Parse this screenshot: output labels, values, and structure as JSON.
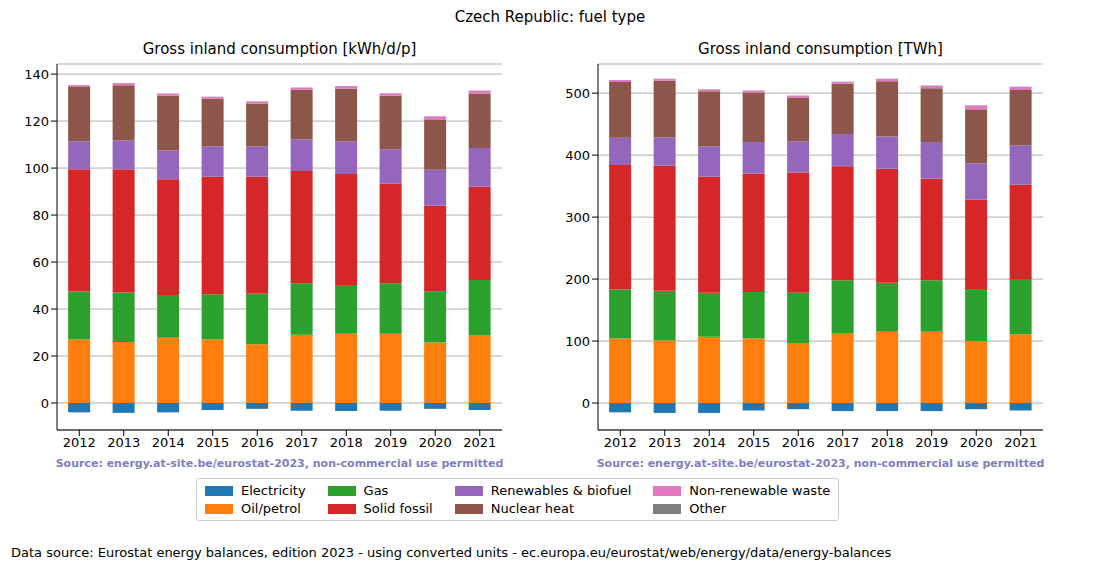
{
  "title": "Czech Republic: fuel type",
  "footer": "Data source: Eurostat energy balances, edition 2023 - using converted units - ec.europa.eu/eurostat/web/energy/data/energy-balances",
  "chart_data": [
    {
      "type": "bar",
      "title": "Gross inland consumption [kWh/d/p]",
      "annotation": "Source: energy.at-site.be/eurostat-2023, non-commercial use permitted",
      "categories": [
        "2012",
        "2013",
        "2014",
        "2015",
        "2016",
        "2017",
        "2018",
        "2019",
        "2020",
        "2021"
      ],
      "stacked": true,
      "grid": true,
      "legend": "bottom",
      "ylim": [
        -11.5,
        144.3
      ],
      "yticks": [
        0,
        20,
        40,
        60,
        80,
        100,
        120,
        140
      ],
      "series": [
        {
          "name": "Electricity",
          "color": "#1f77b4",
          "values": [
            -4,
            -4.2,
            -4,
            -3,
            -2.5,
            -3.3,
            -3.4,
            -3.3,
            -2.5,
            -3
          ]
        },
        {
          "name": "Oil/petrol",
          "color": "#ff7f0e",
          "values": [
            27,
            26,
            27.8,
            27,
            25,
            29,
            29.5,
            29.5,
            25.7,
            28.7
          ]
        },
        {
          "name": "Gas",
          "color": "#2ca02c",
          "values": [
            20.5,
            21,
            18.2,
            19.3,
            21.5,
            22,
            20.7,
            21.5,
            21.6,
            23.6
          ]
        },
        {
          "name": "Solid fossil",
          "color": "#d62728",
          "values": [
            52,
            52.5,
            49.2,
            50,
            49.8,
            47.8,
            47.3,
            42.3,
            36.7,
            39.7
          ]
        },
        {
          "name": "Renewables & biofuel",
          "color": "#9467bd",
          "values": [
            11.8,
            12.2,
            12.3,
            13,
            13,
            13.5,
            13.8,
            14.7,
            15.3,
            16.5
          ]
        },
        {
          "name": "Nuclear heat",
          "color": "#8c564b",
          "values": [
            23.2,
            23.6,
            23.3,
            20.2,
            18.2,
            21,
            22.5,
            22.8,
            21.2,
            23.2
          ]
        },
        {
          "name": "Non-renewable waste",
          "color": "#e377c2",
          "values": [
            0.8,
            0.8,
            0.8,
            0.8,
            0.8,
            0.9,
            1,
            1,
            1.5,
            1.2
          ]
        },
        {
          "name": "Other",
          "color": "#7f7f7f",
          "values": [
            0.1,
            0.1,
            0.1,
            0.1,
            0.1,
            0.1,
            0.1,
            0.1,
            0.1,
            0.1
          ]
        }
      ]
    },
    {
      "type": "bar",
      "title": "Gross inland consumption [TWh]",
      "annotation": "Source: energy.at-site.be/eurostat-2023, non-commercial use permitted",
      "categories": [
        "2012",
        "2013",
        "2014",
        "2015",
        "2016",
        "2017",
        "2018",
        "2019",
        "2020",
        "2021"
      ],
      "stacked": true,
      "grid": true,
      "legend": "bottom",
      "ylim": [
        -43.5,
        547
      ],
      "yticks": [
        0,
        100,
        200,
        300,
        400,
        500
      ],
      "series": [
        {
          "name": "Electricity",
          "color": "#1f77b4",
          "values": [
            -15,
            -16,
            -16,
            -12,
            -10,
            -13,
            -13,
            -13,
            -10,
            -12
          ]
        },
        {
          "name": "Oil/petrol",
          "color": "#ff7f0e",
          "values": [
            104,
            101,
            107,
            104,
            97,
            113,
            115,
            115,
            100,
            111
          ]
        },
        {
          "name": "Gas",
          "color": "#2ca02c",
          "values": [
            79,
            80,
            71,
            75,
            81,
            85,
            79,
            83,
            84,
            89
          ]
        },
        {
          "name": "Solid fossil",
          "color": "#d62728",
          "values": [
            201,
            202,
            187,
            191,
            194,
            184,
            184,
            164,
            144,
            152
          ]
        },
        {
          "name": "Renewables & biofuel",
          "color": "#9467bd",
          "values": [
            44,
            46,
            49,
            51,
            50,
            52,
            52,
            59,
            59,
            64
          ]
        },
        {
          "name": "Nuclear heat",
          "color": "#8c564b",
          "values": [
            90,
            91,
            89,
            80,
            71,
            81,
            89,
            87,
            87,
            89
          ]
        },
        {
          "name": "Non-renewable waste",
          "color": "#e377c2",
          "values": [
            3,
            3,
            3,
            3,
            3,
            3,
            4,
            4,
            6,
            5
          ]
        },
        {
          "name": "Other",
          "color": "#7f7f7f",
          "values": [
            0.3,
            0.3,
            0.3,
            0.3,
            0.3,
            0.3,
            0.3,
            0.3,
            0.3,
            0.3
          ]
        }
      ]
    }
  ]
}
